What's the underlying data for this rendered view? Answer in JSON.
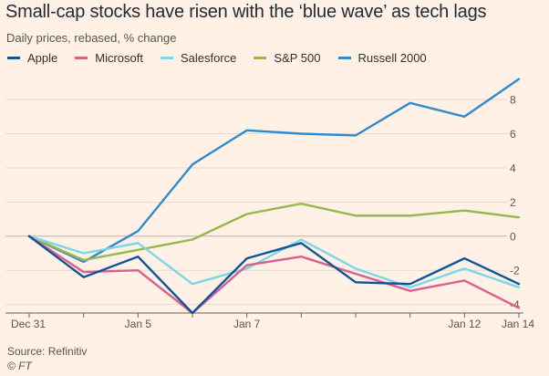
{
  "chart_data": {
    "type": "line",
    "title": "Small-cap stocks have risen with the ‘blue wave’ as tech lags",
    "subtitle": "Daily prices, rebased, % change",
    "xlabel": "",
    "ylabel": "",
    "ylim": [
      -4.5,
      9.5
    ],
    "yticks": [
      8,
      6,
      4,
      2,
      0,
      -2,
      -4
    ],
    "ytick_labels": [
      "8",
      "6",
      "4",
      "2",
      "0",
      "-2",
      "-4"
    ],
    "xticks": [
      0,
      2,
      4,
      8,
      9
    ],
    "xtick_labels": [
      "Dec 31",
      "Jan 5",
      "Jan 7",
      "Jan 12",
      "Jan 14"
    ],
    "x": [
      0,
      1,
      2,
      3,
      4,
      5,
      6,
      7,
      8,
      9
    ],
    "grid": true,
    "legend_position": "top",
    "series": [
      {
        "name": "Apple",
        "color": "#0f5499",
        "values": [
          0,
          -2.4,
          -1.2,
          -4.5,
          -1.3,
          -0.4,
          -2.7,
          -2.8,
          -1.3,
          -2.8
        ]
      },
      {
        "name": "Microsoft",
        "color": "#d9608d",
        "values": [
          0,
          -2.1,
          -2.0,
          -4.5,
          -1.7,
          -1.2,
          -2.2,
          -3.2,
          -2.6,
          -4.2
        ]
      },
      {
        "name": "Salesforce",
        "color": "#7ad7e5",
        "values": [
          0,
          -1.0,
          -0.4,
          -2.8,
          -1.9,
          -0.2,
          -1.9,
          -3.0,
          -1.9,
          -3.0
        ]
      },
      {
        "name": "S&P 500",
        "color": "#96b849",
        "values": [
          0,
          -1.4,
          -0.8,
          -0.2,
          1.3,
          1.9,
          1.2,
          1.2,
          1.5,
          1.1
        ]
      },
      {
        "name": "Russell 2000",
        "color": "#2e8bcd",
        "values": [
          0,
          -1.5,
          0.3,
          4.2,
          6.2,
          6.0,
          5.9,
          7.8,
          7.0,
          9.2
        ]
      }
    ]
  },
  "source": "Source: Refinitiv",
  "credit": "© FT"
}
